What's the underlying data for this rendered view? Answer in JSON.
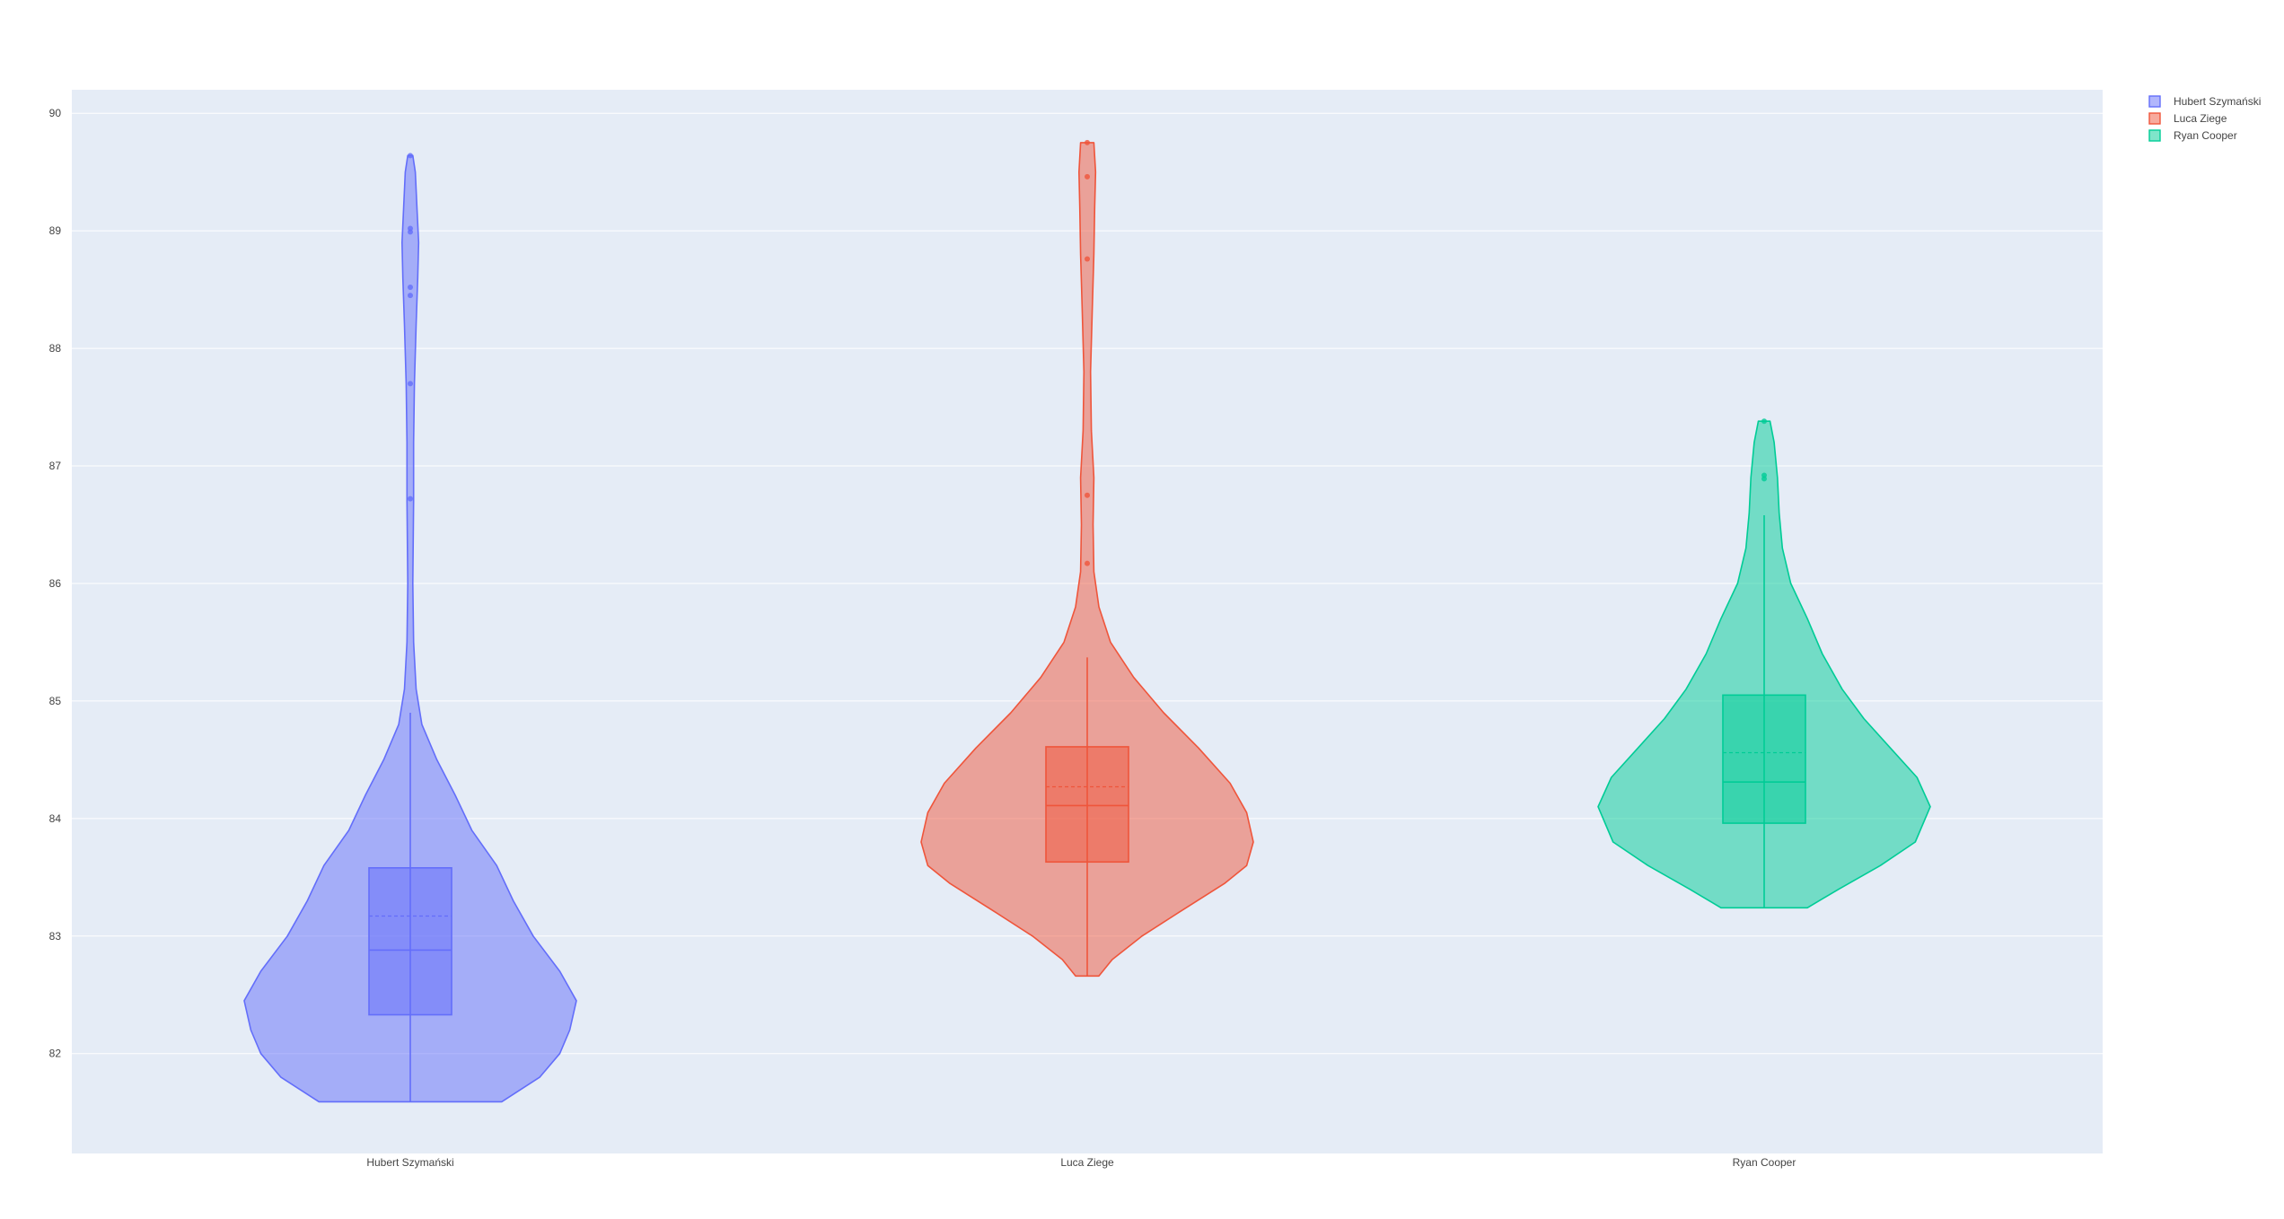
{
  "chart_data": {
    "type": "violin",
    "title": "",
    "xlabel": "",
    "ylabel": "",
    "ylim": [
      81.15,
      90.2
    ],
    "y_ticks": [
      82,
      83,
      84,
      85,
      86,
      87,
      88,
      89,
      90
    ],
    "grid": true,
    "legend_position": "top-right",
    "categories": [
      "Hubert Szymański",
      "Luca Ziege",
      "Ryan Cooper"
    ],
    "series": [
      {
        "name": "Hubert Szymański",
        "color": "#636efa",
        "box": {
          "q1": 82.33,
          "median": 82.88,
          "mean": 83.17,
          "q3": 83.58,
          "lower_fence": 81.59,
          "upper_fence": 84.9
        },
        "range": [
          81.59,
          89.64
        ],
        "outliers": [
          89.64,
          89.02,
          88.99,
          88.52,
          88.45,
          87.7,
          86.72
        ],
        "density": [
          [
            81.59,
            0.55
          ],
          [
            81.8,
            0.78
          ],
          [
            82.0,
            0.9
          ],
          [
            82.2,
            0.96
          ],
          [
            82.45,
            1.0
          ],
          [
            82.7,
            0.9
          ],
          [
            83.0,
            0.74
          ],
          [
            83.3,
            0.62
          ],
          [
            83.6,
            0.52
          ],
          [
            83.9,
            0.37
          ],
          [
            84.2,
            0.27
          ],
          [
            84.5,
            0.16
          ],
          [
            84.8,
            0.07
          ],
          [
            85.1,
            0.035
          ],
          [
            85.5,
            0.02
          ],
          [
            86.0,
            0.015
          ],
          [
            86.7,
            0.02
          ],
          [
            87.2,
            0.02
          ],
          [
            87.7,
            0.025
          ],
          [
            88.2,
            0.035
          ],
          [
            88.6,
            0.045
          ],
          [
            88.9,
            0.05
          ],
          [
            89.2,
            0.04
          ],
          [
            89.5,
            0.03
          ],
          [
            89.64,
            0.015
          ]
        ]
      },
      {
        "name": "Luca Ziege",
        "color": "#ef553b",
        "box": {
          "q1": 83.63,
          "median": 84.11,
          "mean": 84.27,
          "q3": 84.61,
          "lower_fence": 82.66,
          "upper_fence": 85.37
        },
        "range": [
          82.66,
          89.75
        ],
        "outliers": [
          89.75,
          89.46,
          88.76,
          86.75,
          86.17
        ],
        "density": [
          [
            82.66,
            0.07
          ],
          [
            82.8,
            0.15
          ],
          [
            83.0,
            0.33
          ],
          [
            83.2,
            0.55
          ],
          [
            83.45,
            0.83
          ],
          [
            83.6,
            0.96
          ],
          [
            83.8,
            1.0
          ],
          [
            84.05,
            0.96
          ],
          [
            84.3,
            0.86
          ],
          [
            84.6,
            0.67
          ],
          [
            84.9,
            0.46
          ],
          [
            85.2,
            0.28
          ],
          [
            85.5,
            0.14
          ],
          [
            85.8,
            0.07
          ],
          [
            86.1,
            0.04
          ],
          [
            86.5,
            0.035
          ],
          [
            86.9,
            0.04
          ],
          [
            87.3,
            0.025
          ],
          [
            87.8,
            0.02
          ],
          [
            88.3,
            0.03
          ],
          [
            88.8,
            0.04
          ],
          [
            89.2,
            0.045
          ],
          [
            89.5,
            0.05
          ],
          [
            89.75,
            0.04
          ]
        ]
      },
      {
        "name": "Ryan Cooper",
        "color": "#00cc96",
        "box": {
          "q1": 83.96,
          "median": 84.31,
          "mean": 84.56,
          "q3": 85.05,
          "lower_fence": 83.24,
          "upper_fence": 86.58
        },
        "range": [
          83.24,
          87.38
        ],
        "outliers": [
          87.38,
          86.92,
          86.89
        ],
        "density": [
          [
            83.24,
            0.26
          ],
          [
            83.4,
            0.45
          ],
          [
            83.6,
            0.7
          ],
          [
            83.8,
            0.91
          ],
          [
            84.1,
            1.0
          ],
          [
            84.35,
            0.92
          ],
          [
            84.6,
            0.76
          ],
          [
            84.85,
            0.6
          ],
          [
            85.1,
            0.47
          ],
          [
            85.4,
            0.35
          ],
          [
            85.7,
            0.26
          ],
          [
            86.0,
            0.16
          ],
          [
            86.3,
            0.11
          ],
          [
            86.6,
            0.09
          ],
          [
            86.9,
            0.08
          ],
          [
            87.2,
            0.06
          ],
          [
            87.38,
            0.035
          ]
        ]
      }
    ]
  }
}
